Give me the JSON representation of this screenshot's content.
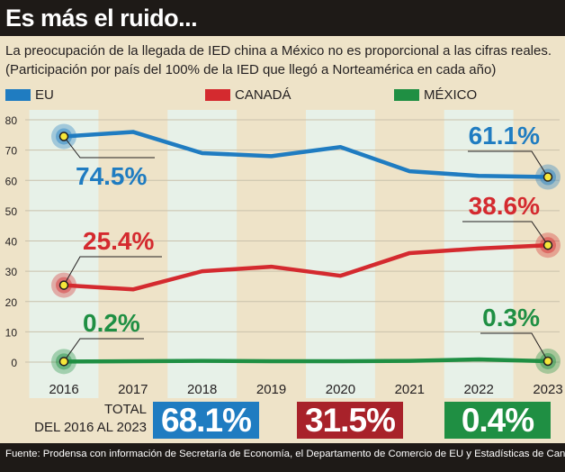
{
  "header": {
    "title": "Es más el ruido...",
    "subtitle_line1": "La preocupación de la llegada de IED china a México no es proporcional a las cifras reales.",
    "subtitle_line2": "(Participación por país del 100% de la IED que llegó a Norteamérica en cada año)"
  },
  "chart_data": {
    "type": "line",
    "x": [
      "2016",
      "2017",
      "2018",
      "2019",
      "2020",
      "2021",
      "2022",
      "2023"
    ],
    "ylim": [
      0,
      80
    ],
    "yticks": [
      "0",
      "10",
      "20",
      "30",
      "40",
      "50",
      "60",
      "70",
      "80"
    ],
    "grid": "horizontal",
    "legend_position": "top",
    "series": [
      {
        "name": "EU",
        "color": "#1f7cc1",
        "values": [
          74.5,
          76,
          69,
          68,
          71,
          63,
          61.5,
          61.1
        ]
      },
      {
        "name": "CANADÁ",
        "color": "#d42a2f",
        "values": [
          25.4,
          24,
          30,
          31.5,
          28.5,
          36,
          37.5,
          38.6
        ]
      },
      {
        "name": "MÉXICO",
        "color": "#1f8f43",
        "values": [
          0.2,
          0.3,
          0.4,
          0.3,
          0.3,
          0.4,
          0.9,
          0.3
        ]
      }
    ],
    "annotations": [
      {
        "series": 0,
        "point": 0,
        "text": "74.5%"
      },
      {
        "series": 0,
        "point": 7,
        "text": "61.1%"
      },
      {
        "series": 1,
        "point": 0,
        "text": "25.4%"
      },
      {
        "series": 1,
        "point": 7,
        "text": "38.6%"
      },
      {
        "series": 2,
        "point": 0,
        "text": "0.2%"
      },
      {
        "series": 2,
        "point": 7,
        "text": "0.3%"
      }
    ]
  },
  "totals": {
    "label_line1": "TOTAL",
    "label_line2": "DEL 2016 AL 2023",
    "items": [
      {
        "name": "EU",
        "value": "68.1%",
        "color": "#1f7cc1"
      },
      {
        "name": "CANADÁ",
        "value": "31.5%",
        "color": "#a8222a"
      },
      {
        "name": "MÉXICO",
        "value": "0.4%",
        "color": "#1f8f43"
      }
    ]
  },
  "source": "Fuente: Prodensa con información de Secretaría de Economía, el Departamento de Comercio de EU y Estadísticas de Canadá"
}
